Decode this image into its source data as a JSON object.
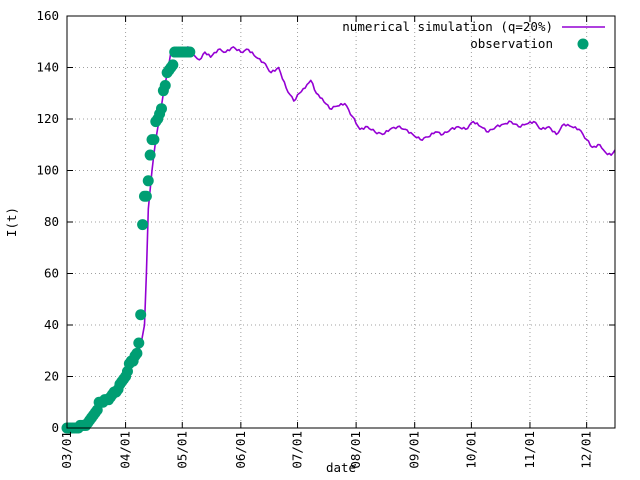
{
  "chart_data": {
    "type": "line",
    "title": "",
    "xlabel": "date",
    "ylabel": "I(t)",
    "ylim": [
      0,
      160
    ],
    "xlim": [
      "2020-03-01",
      "2020-12-16"
    ],
    "grid": true,
    "legend_position": "top-right",
    "x_ticks": [
      "03/01",
      "04/01",
      "05/01",
      "06/01",
      "07/01",
      "08/01",
      "09/01",
      "10/01",
      "11/01",
      "12/01"
    ],
    "y_ticks": [
      0,
      20,
      40,
      60,
      80,
      100,
      120,
      140,
      160
    ],
    "series": [
      {
        "name": "numerical simulation (q=20%)",
        "kind": "line",
        "color": "#9400d3",
        "points": [
          [
            "2020-03-01",
            0
          ],
          [
            "2020-03-05",
            0.3
          ],
          [
            "2020-03-10",
            1
          ],
          [
            "2020-03-14",
            3
          ],
          [
            "2020-03-18",
            8
          ],
          [
            "2020-03-22",
            11
          ],
          [
            "2020-03-26",
            14
          ],
          [
            "2020-03-30",
            18
          ],
          [
            "2020-04-03",
            22
          ],
          [
            "2020-04-06",
            27
          ],
          [
            "2020-04-09",
            32
          ],
          [
            "2020-04-11",
            40
          ],
          [
            "2020-04-12",
            60
          ],
          [
            "2020-04-13",
            85
          ],
          [
            "2020-04-15",
            100
          ],
          [
            "2020-04-17",
            112
          ],
          [
            "2020-04-19",
            120
          ],
          [
            "2020-04-21",
            130
          ],
          [
            "2020-04-23",
            138
          ],
          [
            "2020-04-25",
            146
          ],
          [
            "2020-04-28",
            147
          ],
          [
            "2020-05-01",
            146
          ],
          [
            "2020-05-04",
            148
          ],
          [
            "2020-05-07",
            145
          ],
          [
            "2020-05-10",
            143
          ],
          [
            "2020-05-13",
            146
          ],
          [
            "2020-05-16",
            144
          ],
          [
            "2020-05-20",
            147
          ],
          [
            "2020-05-24",
            146
          ],
          [
            "2020-05-28",
            148
          ],
          [
            "2020-06-01",
            146
          ],
          [
            "2020-06-05",
            147
          ],
          [
            "2020-06-09",
            144
          ],
          [
            "2020-06-13",
            142
          ],
          [
            "2020-06-17",
            138
          ],
          [
            "2020-06-21",
            140
          ],
          [
            "2020-06-25",
            132
          ],
          [
            "2020-06-29",
            127
          ],
          [
            "2020-07-02",
            130
          ],
          [
            "2020-07-05",
            132
          ],
          [
            "2020-07-08",
            135
          ],
          [
            "2020-07-11",
            130
          ],
          [
            "2020-07-14",
            128
          ],
          [
            "2020-07-18",
            124
          ],
          [
            "2020-07-22",
            125
          ],
          [
            "2020-07-26",
            126
          ],
          [
            "2020-07-30",
            121
          ],
          [
            "2020-08-03",
            116
          ],
          [
            "2020-08-07",
            117
          ],
          [
            "2020-08-11",
            115
          ],
          [
            "2020-08-15",
            114
          ],
          [
            "2020-08-19",
            116
          ],
          [
            "2020-08-23",
            117
          ],
          [
            "2020-08-27",
            116
          ],
          [
            "2020-08-31",
            114
          ],
          [
            "2020-09-04",
            112
          ],
          [
            "2020-09-08",
            113
          ],
          [
            "2020-09-12",
            115
          ],
          [
            "2020-09-16",
            114
          ],
          [
            "2020-09-20",
            116
          ],
          [
            "2020-09-24",
            117
          ],
          [
            "2020-09-28",
            116
          ],
          [
            "2020-10-02",
            119
          ],
          [
            "2020-10-06",
            117
          ],
          [
            "2020-10-10",
            115
          ],
          [
            "2020-10-14",
            117
          ],
          [
            "2020-10-18",
            118
          ],
          [
            "2020-10-22",
            119
          ],
          [
            "2020-10-26",
            117
          ],
          [
            "2020-10-30",
            118
          ],
          [
            "2020-11-03",
            119
          ],
          [
            "2020-11-07",
            116
          ],
          [
            "2020-11-11",
            117
          ],
          [
            "2020-11-15",
            114
          ],
          [
            "2020-11-19",
            118
          ],
          [
            "2020-11-23",
            117
          ],
          [
            "2020-11-27",
            116
          ],
          [
            "2020-12-01",
            112
          ],
          [
            "2020-12-04",
            109
          ],
          [
            "2020-12-08",
            110
          ],
          [
            "2020-12-11",
            107
          ],
          [
            "2020-12-14",
            106
          ],
          [
            "2020-12-16",
            108
          ]
        ]
      },
      {
        "name": "observation",
        "kind": "points",
        "color": "#009e73",
        "points": [
          [
            "2020-03-01",
            0
          ],
          [
            "2020-03-02",
            0
          ],
          [
            "2020-03-03",
            0
          ],
          [
            "2020-03-04",
            0
          ],
          [
            "2020-03-05",
            0
          ],
          [
            "2020-03-06",
            0
          ],
          [
            "2020-03-07",
            0
          ],
          [
            "2020-03-08",
            1
          ],
          [
            "2020-03-09",
            1
          ],
          [
            "2020-03-10",
            1
          ],
          [
            "2020-03-11",
            1
          ],
          [
            "2020-03-12",
            2
          ],
          [
            "2020-03-13",
            3
          ],
          [
            "2020-03-14",
            4
          ],
          [
            "2020-03-15",
            5
          ],
          [
            "2020-03-16",
            6
          ],
          [
            "2020-03-17",
            7
          ],
          [
            "2020-03-18",
            10
          ],
          [
            "2020-03-19",
            10
          ],
          [
            "2020-03-20",
            10
          ],
          [
            "2020-03-21",
            11
          ],
          [
            "2020-03-22",
            11
          ],
          [
            "2020-03-23",
            11
          ],
          [
            "2020-03-24",
            12
          ],
          [
            "2020-03-25",
            13
          ],
          [
            "2020-03-26",
            14
          ],
          [
            "2020-03-27",
            14
          ],
          [
            "2020-03-28",
            15
          ],
          [
            "2020-03-29",
            17
          ],
          [
            "2020-03-30",
            18
          ],
          [
            "2020-03-31",
            19
          ],
          [
            "2020-04-01",
            20
          ],
          [
            "2020-04-02",
            22
          ],
          [
            "2020-04-03",
            25
          ],
          [
            "2020-04-04",
            26
          ],
          [
            "2020-04-05",
            26
          ],
          [
            "2020-04-06",
            28
          ],
          [
            "2020-04-07",
            29
          ],
          [
            "2020-04-08",
            33
          ],
          [
            "2020-04-09",
            44
          ],
          [
            "2020-04-10",
            79
          ],
          [
            "2020-04-11",
            90
          ],
          [
            "2020-04-12",
            90
          ],
          [
            "2020-04-13",
            96
          ],
          [
            "2020-04-14",
            106
          ],
          [
            "2020-04-15",
            112
          ],
          [
            "2020-04-16",
            112
          ],
          [
            "2020-04-17",
            119
          ],
          [
            "2020-04-18",
            120
          ],
          [
            "2020-04-19",
            122
          ],
          [
            "2020-04-20",
            124
          ],
          [
            "2020-04-21",
            131
          ],
          [
            "2020-04-22",
            133
          ],
          [
            "2020-04-23",
            138
          ],
          [
            "2020-04-24",
            139
          ],
          [
            "2020-04-25",
            140
          ],
          [
            "2020-04-26",
            141
          ],
          [
            "2020-04-27",
            146
          ],
          [
            "2020-04-28",
            146
          ],
          [
            "2020-04-29",
            146
          ],
          [
            "2020-04-30",
            146
          ],
          [
            "2020-05-01",
            146
          ],
          [
            "2020-05-02",
            146
          ],
          [
            "2020-05-03",
            146
          ],
          [
            "2020-05-04",
            146
          ],
          [
            "2020-05-05",
            146
          ]
        ]
      }
    ]
  }
}
